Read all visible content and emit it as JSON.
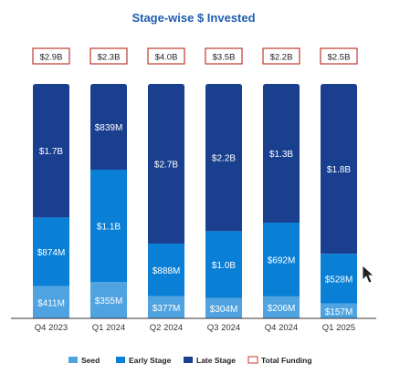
{
  "chart_data": {
    "type": "bar",
    "stacked": true,
    "title": "Stage-wise $ Invested",
    "categories": [
      "Q4 2023",
      "Q1 2024",
      "Q2 2024",
      "Q3 2024",
      "Q4 2024",
      "Q1 2025"
    ],
    "series": [
      {
        "name": "Seed",
        "color": "#4fa3e0",
        "values": [
          0.411,
          0.355,
          0.377,
          0.304,
          0.206,
          0.157
        ],
        "labels": [
          "$411M",
          "$355M",
          "$377M",
          "$304M",
          "$206M",
          "$157M"
        ]
      },
      {
        "name": "Early Stage",
        "color": "#0a7fd6",
        "values": [
          0.874,
          1.1,
          0.888,
          1.0,
          0.692,
          0.528
        ],
        "labels": [
          "$874M",
          "$1.1B",
          "$888M",
          "$1.0B",
          "$692M",
          "$528M"
        ]
      },
      {
        "name": "Late Stage",
        "color": "#1a3f8f",
        "values": [
          1.7,
          0.839,
          2.7,
          2.2,
          1.3,
          1.8
        ],
        "labels": [
          "$1.7B",
          "$839M",
          "$2.7B",
          "$2.2B",
          "$1.3B",
          "$1.8B"
        ]
      }
    ],
    "totals": {
      "name": "Total Funding",
      "labels": [
        "$2.9B",
        "$2.3B",
        "$4.0B",
        "$3.5B",
        "$2.2B",
        "$2.5B"
      ],
      "box_color": "#c0392b"
    },
    "legend_position": "bottom",
    "grid": false,
    "title_color": "#1f5db0",
    "label_color": "#ffffff"
  }
}
